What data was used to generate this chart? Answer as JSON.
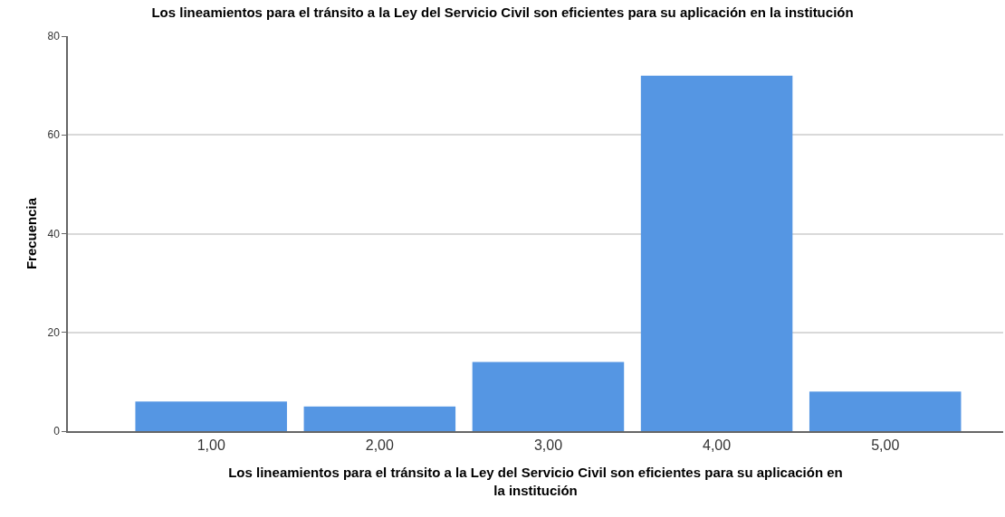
{
  "chart_data": {
    "type": "bar",
    "title": "Los lineamientos para el tránsito a la Ley del Servicio Civil son eficientes para su aplicación en la institución",
    "xlabel": "Los lineamientos para el tránsito a la Ley del Servicio Civil son eficientes para su aplicación en la institución",
    "ylabel": "Frecuencia",
    "categories": [
      "1,00",
      "2,00",
      "3,00",
      "4,00",
      "5,00"
    ],
    "values": [
      6,
      5,
      14,
      72,
      8
    ],
    "color": "#5596e3",
    "ylim": [
      0,
      80
    ],
    "yticks": [
      0,
      20,
      40,
      60,
      80
    ],
    "grid": "y"
  }
}
